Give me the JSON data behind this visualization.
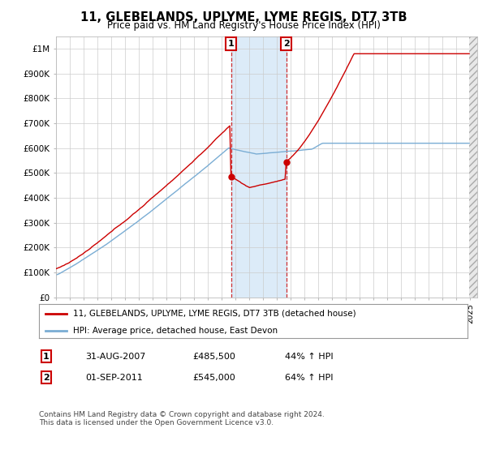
{
  "title": "11, GLEBELANDS, UPLYME, LYME REGIS, DT7 3TB",
  "subtitle": "Price paid vs. HM Land Registry's House Price Index (HPI)",
  "ylabel_ticks": [
    "£0",
    "£100K",
    "£200K",
    "£300K",
    "£400K",
    "£500K",
    "£600K",
    "£700K",
    "£800K",
    "£900K",
    "£1M"
  ],
  "ytick_values": [
    0,
    100000,
    200000,
    300000,
    400000,
    500000,
    600000,
    700000,
    800000,
    900000,
    1000000
  ],
  "xlim": [
    1995.0,
    2025.5
  ],
  "ylim": [
    0,
    1050000
  ],
  "transaction1": {
    "date_x": 2007.667,
    "price": 485500,
    "label": "1",
    "date_str": "31-AUG-2007",
    "pct": "44% ↑ HPI"
  },
  "transaction2": {
    "date_x": 2011.667,
    "price": 545000,
    "label": "2",
    "date_str": "01-SEP-2011",
    "pct": "64% ↑ HPI"
  },
  "legend_line1": "11, GLEBELANDS, UPLYME, LYME REGIS, DT7 3TB (detached house)",
  "legend_line2": "HPI: Average price, detached house, East Devon",
  "footnote": "Contains HM Land Registry data © Crown copyright and database right 2024.\nThis data is licensed under the Open Government Licence v3.0.",
  "property_color": "#cc0000",
  "hpi_color": "#7aadd4",
  "shade_color": "#d6e8f7",
  "background_color": "#ffffff",
  "grid_color": "#cccccc"
}
